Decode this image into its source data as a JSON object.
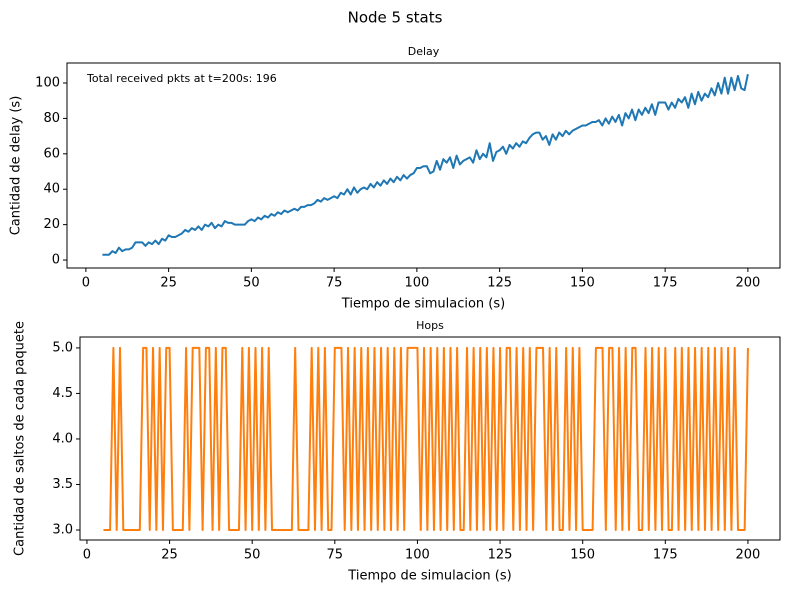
{
  "chart_data": [
    {
      "type": "line",
      "suptitle": "Node 5 stats",
      "title": "Delay",
      "xlabel": "Tiempo de simulacion (s)",
      "ylabel": "Cantidad de delay (s)",
      "annotation": "Total received pkts at t=200s: 196",
      "color": "#1f77b4",
      "xlim": [
        -5.7,
        209.7
      ],
      "ylim": [
        -4.5,
        111.3
      ],
      "xticks": [
        0,
        25,
        50,
        75,
        100,
        125,
        150,
        175,
        200
      ],
      "yticks": [
        0,
        20,
        40,
        60,
        80,
        100
      ],
      "x": [
        5,
        6,
        7,
        8,
        9,
        10,
        11,
        12,
        13,
        14,
        15,
        16,
        17,
        18,
        19,
        20,
        21,
        22,
        23,
        24,
        25,
        26,
        27,
        28,
        29,
        30,
        31,
        32,
        33,
        34,
        35,
        36,
        37,
        38,
        39,
        40,
        41,
        42,
        43,
        44,
        45,
        46,
        47,
        48,
        49,
        50,
        51,
        52,
        53,
        54,
        55,
        56,
        57,
        58,
        59,
        60,
        61,
        62,
        63,
        64,
        65,
        66,
        67,
        68,
        69,
        70,
        71,
        72,
        73,
        74,
        75,
        76,
        77,
        78,
        79,
        80,
        81,
        82,
        83,
        84,
        85,
        86,
        87,
        88,
        89,
        90,
        91,
        92,
        93,
        94,
        95,
        96,
        97,
        98,
        99,
        100,
        101,
        102,
        103,
        104,
        105,
        106,
        107,
        108,
        109,
        110,
        111,
        112,
        113,
        114,
        115,
        116,
        117,
        118,
        119,
        120,
        121,
        122,
        123,
        124,
        125,
        126,
        127,
        128,
        129,
        130,
        131,
        132,
        133,
        134,
        135,
        136,
        137,
        138,
        139,
        140,
        141,
        142,
        143,
        144,
        145,
        146,
        147,
        148,
        149,
        150,
        151,
        152,
        153,
        154,
        155,
        156,
        157,
        158,
        159,
        160,
        161,
        162,
        163,
        164,
        165,
        166,
        167,
        168,
        169,
        170,
        171,
        172,
        173,
        174,
        175,
        176,
        177,
        178,
        179,
        180,
        181,
        182,
        183,
        184,
        185,
        186,
        187,
        188,
        189,
        190,
        191,
        192,
        193,
        194,
        195,
        196,
        197,
        198,
        199,
        200
      ],
      "values": [
        3,
        3,
        3,
        5,
        4,
        7,
        5,
        6,
        6,
        7,
        10,
        10,
        10,
        8,
        10,
        9,
        11,
        9,
        12,
        11,
        14,
        13,
        13,
        14,
        15,
        17,
        16,
        18,
        17,
        19,
        17,
        20,
        19,
        21,
        18,
        20,
        19,
        22,
        21,
        21,
        20,
        20,
        20,
        20,
        22,
        23,
        22,
        24,
        23,
        25,
        24,
        26,
        25,
        27,
        26,
        28,
        27,
        28,
        29,
        28,
        30,
        30,
        31,
        31,
        32,
        34,
        33,
        35,
        34,
        35,
        36,
        35,
        38,
        37,
        40,
        37,
        41,
        38,
        40,
        41,
        40,
        43,
        41,
        44,
        42,
        45,
        43,
        46,
        44,
        47,
        45,
        48,
        46,
        48,
        49,
        52,
        52,
        53,
        53,
        49,
        50,
        56,
        51,
        57,
        55,
        58,
        52,
        59,
        54,
        56,
        57,
        58,
        55,
        62,
        57,
        60,
        58,
        66,
        56,
        61,
        62,
        64,
        60,
        65,
        63,
        66,
        64,
        67,
        66,
        69,
        71,
        72,
        72,
        68,
        70,
        65,
        71,
        68,
        72,
        70,
        73,
        71,
        73,
        74,
        75,
        76,
        76,
        77,
        78,
        78,
        79,
        76,
        80,
        77,
        81,
        78,
        82,
        76,
        83,
        80,
        85,
        79,
        85,
        82,
        86,
        83,
        88,
        82,
        89,
        89,
        89,
        85,
        89,
        86,
        91,
        89,
        92,
        86,
        94,
        88,
        95,
        90,
        94,
        92,
        97,
        93,
        100,
        94,
        103,
        94,
        103,
        96,
        104,
        97,
        96,
        105
      ]
    },
    {
      "type": "line",
      "title": "Hops",
      "xlabel": "Tiempo de simulacion (s)",
      "ylabel": "Cantidad de saltos de cada paquete",
      "color": "#ff7f0e",
      "xlim": [
        -2.1,
        209.7
      ],
      "ylim": [
        2.89,
        5.12
      ],
      "xticks": [
        0,
        25,
        50,
        75,
        100,
        125,
        150,
        175,
        200
      ],
      "yticks": [
        {
          "value": 3,
          "label": "3.0"
        },
        3.5,
        {
          "value": 4,
          "label": "4.0"
        },
        4.5,
        {
          "value": 5,
          "label": "5.0"
        }
      ],
      "x": [
        5,
        6,
        7,
        8,
        9,
        10,
        11,
        12,
        13,
        14,
        15,
        16,
        17,
        18,
        19,
        20,
        21,
        22,
        23,
        24,
        25,
        26,
        27,
        28,
        29,
        30,
        31,
        32,
        33,
        34,
        35,
        36,
        37,
        38,
        39,
        40,
        41,
        42,
        43,
        44,
        45,
        46,
        47,
        48,
        49,
        50,
        51,
        52,
        53,
        54,
        55,
        56,
        57,
        58,
        59,
        60,
        61,
        62,
        63,
        64,
        65,
        66,
        67,
        68,
        69,
        70,
        71,
        72,
        73,
        74,
        75,
        76,
        77,
        78,
        79,
        80,
        81,
        82,
        83,
        84,
        85,
        86,
        87,
        88,
        89,
        90,
        91,
        92,
        93,
        94,
        95,
        96,
        97,
        98,
        99,
        100,
        101,
        102,
        103,
        104,
        105,
        106,
        107,
        108,
        109,
        110,
        111,
        112,
        113,
        114,
        115,
        116,
        117,
        118,
        119,
        120,
        121,
        122,
        123,
        124,
        125,
        126,
        127,
        128,
        129,
        130,
        131,
        132,
        133,
        134,
        135,
        136,
        137,
        138,
        139,
        140,
        141,
        142,
        143,
        144,
        145,
        146,
        147,
        148,
        149,
        150,
        151,
        152,
        153,
        154,
        155,
        156,
        157,
        158,
        159,
        160,
        161,
        162,
        163,
        164,
        165,
        166,
        167,
        168,
        169,
        170,
        171,
        172,
        173,
        174,
        175,
        176,
        177,
        178,
        179,
        180,
        181,
        182,
        183,
        184,
        185,
        186,
        187,
        188,
        189,
        190,
        191,
        192,
        193,
        194,
        195,
        196,
        197,
        198,
        199,
        200
      ],
      "values": [
        3,
        3,
        3,
        5,
        3,
        5,
        3,
        3,
        3,
        3,
        3,
        3,
        5,
        5,
        3,
        5,
        3,
        5,
        3,
        5,
        5,
        3,
        3,
        3,
        3,
        5,
        3,
        5,
        5,
        5,
        3,
        5,
        5,
        3,
        5,
        3,
        5,
        5,
        3,
        3,
        3,
        3,
        5,
        3,
        5,
        3,
        5,
        3,
        5,
        3,
        5,
        3,
        3,
        3,
        3,
        3,
        3,
        3,
        5,
        3,
        3,
        3,
        3,
        5,
        3,
        5,
        3,
        5,
        3,
        3,
        5,
        5,
        5,
        3,
        5,
        3,
        5,
        3,
        5,
        3,
        5,
        3,
        5,
        3,
        5,
        3,
        5,
        3,
        5,
        3,
        5,
        3,
        5,
        5,
        5,
        5,
        3,
        5,
        3,
        5,
        3,
        5,
        3,
        5,
        3,
        5,
        3,
        5,
        3,
        3,
        5,
        3,
        5,
        3,
        5,
        3,
        5,
        3,
        5,
        3,
        5,
        3,
        5,
        5,
        3,
        5,
        3,
        5,
        3,
        5,
        3,
        5,
        5,
        5,
        3,
        5,
        3,
        5,
        3,
        3,
        5,
        3,
        5,
        3,
        5,
        3,
        3,
        3,
        3,
        5,
        5,
        5,
        3,
        5,
        5,
        3,
        5,
        3,
        5,
        3,
        5,
        5,
        3,
        3,
        5,
        3,
        5,
        3,
        5,
        3,
        5,
        3,
        3,
        5,
        3,
        5,
        3,
        5,
        3,
        5,
        3,
        5,
        3,
        5,
        3,
        5,
        3,
        5,
        3,
        5,
        3,
        5,
        3,
        3,
        3,
        5
      ]
    }
  ]
}
